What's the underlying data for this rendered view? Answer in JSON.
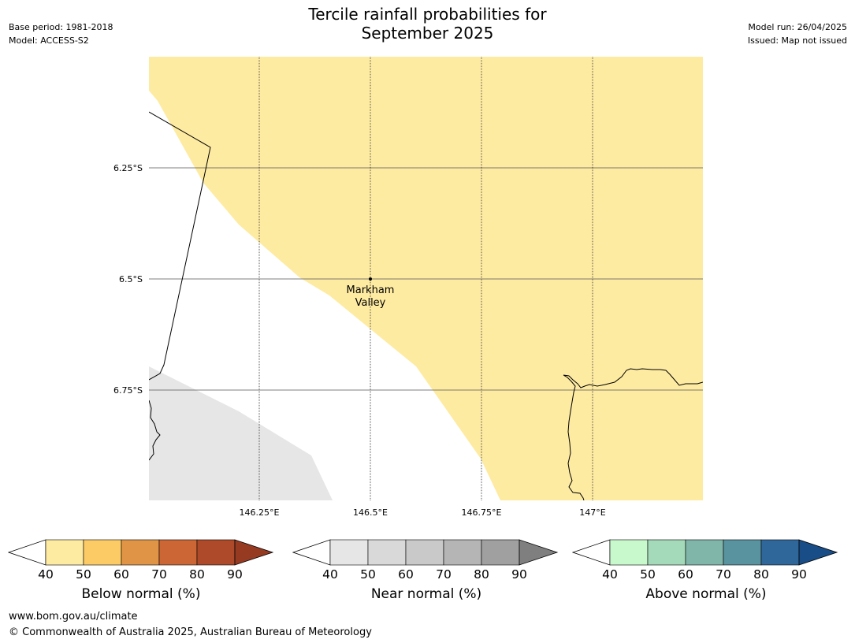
{
  "header": {
    "title_line1": "Tercile rainfall probabilities for",
    "title_line2": "September 2025",
    "base_period": "Base period: 1981-2018",
    "model": "Model: ACCESS-S2",
    "model_run": "Model run: 26/04/2025",
    "issued": "Issued: Map not issued"
  },
  "map": {
    "lat_labels": [
      "6.25°S",
      "6.5°S",
      "6.75°S"
    ],
    "lon_labels": [
      "146.25°E",
      "146.5°E",
      "146.75°E",
      "147°E"
    ],
    "place": {
      "line1": "Markham",
      "line2": "Valley"
    },
    "colors": {
      "below_40_50": "#feeba2",
      "near_40_50": "#e6e6e6",
      "coast": "#000000",
      "grid": "#444444"
    }
  },
  "legends": [
    {
      "title": "Below normal (%)",
      "ticks": [
        "40",
        "50",
        "60",
        "70",
        "80",
        "90"
      ],
      "colors": [
        "#feeba2",
        "#fdcb66",
        "#e09445",
        "#cc6634",
        "#ae4a2a",
        "#963a22"
      ]
    },
    {
      "title": "Near normal (%)",
      "ticks": [
        "40",
        "50",
        "60",
        "70",
        "80",
        "90"
      ],
      "colors": [
        "#e6e6e6",
        "#d9d9d9",
        "#c9c9c9",
        "#b5b5b5",
        "#a0a0a0",
        "#7f7f7f"
      ]
    },
    {
      "title": "Above normal (%)",
      "ticks": [
        "40",
        "50",
        "60",
        "70",
        "80",
        "90"
      ],
      "colors": [
        "#c7f9cc",
        "#a4dab9",
        "#80b6aa",
        "#5993a0",
        "#30679a",
        "#184d87"
      ]
    }
  ],
  "footer": {
    "url": "www.bom.gov.au/climate",
    "copyright": "© Commonwealth of Australia 2025, Australian Bureau of Meteorology"
  }
}
